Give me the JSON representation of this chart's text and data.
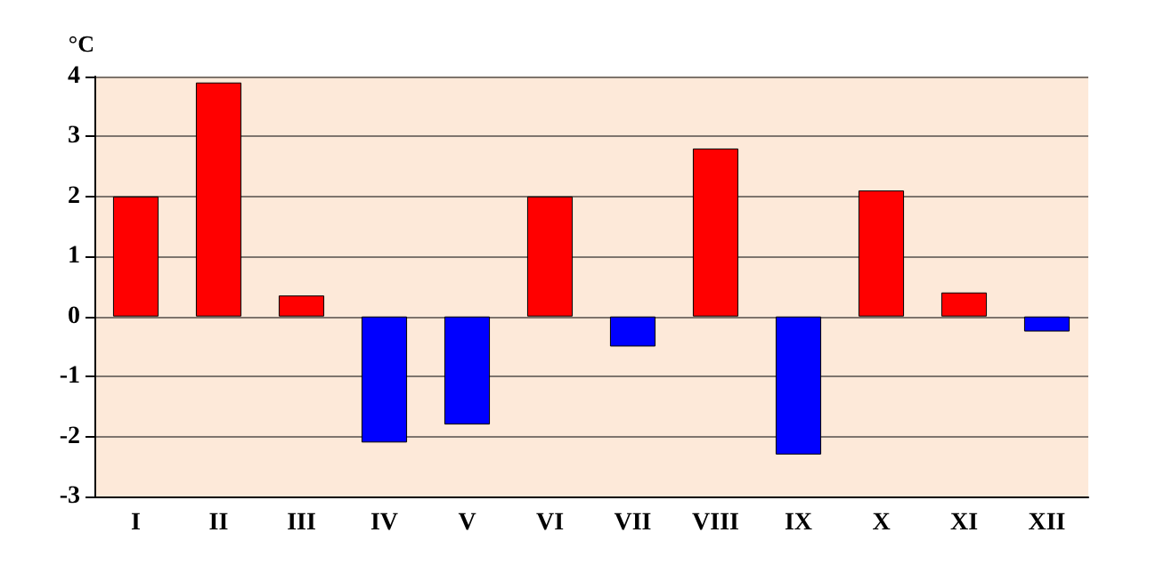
{
  "chart_data": {
    "type": "bar",
    "ylabel": "°C",
    "categories": [
      "I",
      "II",
      "III",
      "IV",
      "V",
      "VI",
      "VII",
      "VIII",
      "IX",
      "X",
      "XI",
      "XII"
    ],
    "values": [
      2.0,
      3.9,
      0.35,
      -2.1,
      -1.8,
      2.0,
      -0.5,
      2.8,
      -2.3,
      2.1,
      0.4,
      -0.25
    ],
    "colors": [
      "#ff0000",
      "#ff0000",
      "#ff0000",
      "#0000ff",
      "#0000ff",
      "#ff0000",
      "#0000ff",
      "#ff0000",
      "#0000ff",
      "#ff0000",
      "#ff0000",
      "#0000ff"
    ],
    "ylim": [
      -3,
      4
    ],
    "yticks": [
      -3,
      -2,
      -1,
      0,
      1,
      2,
      3,
      4
    ],
    "grid": "y"
  }
}
